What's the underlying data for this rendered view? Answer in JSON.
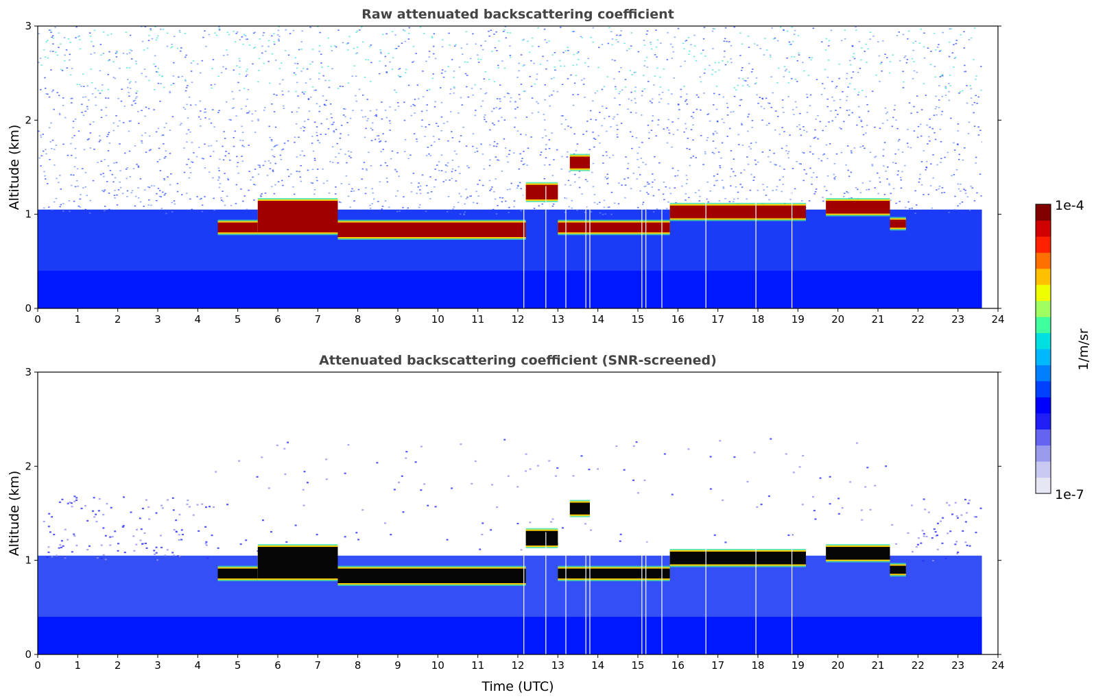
{
  "chart_data": [
    {
      "type": "heatmap",
      "title": "Raw attenuated backscattering coefficient",
      "xlabel": "",
      "ylabel": "Altitude (km)",
      "xlim": [
        0,
        24
      ],
      "ylim": [
        0,
        3
      ],
      "x_ticks": [
        0,
        1,
        2,
        3,
        4,
        5,
        6,
        7,
        8,
        9,
        10,
        11,
        12,
        13,
        14,
        15,
        16,
        17,
        18,
        19,
        20,
        21,
        22,
        23,
        24
      ],
      "y_ticks": [
        0,
        1,
        2,
        3
      ],
      "data_end_time": 23.6,
      "cloud_layer": [
        {
          "t_start": 4.5,
          "t_end": 5.5,
          "base_km": 0.8,
          "top_km": 0.92
        },
        {
          "t_start": 5.5,
          "t_end": 7.5,
          "base_km": 0.8,
          "top_km": 1.15
        },
        {
          "t_start": 7.5,
          "t_end": 12.2,
          "base_km": 0.75,
          "top_km": 0.92
        },
        {
          "t_start": 12.2,
          "t_end": 13.0,
          "base_km": 1.15,
          "top_km": 1.32
        },
        {
          "t_start": 13.3,
          "t_end": 13.8,
          "base_km": 1.48,
          "top_km": 1.62
        },
        {
          "t_start": 13.0,
          "t_end": 15.8,
          "base_km": 0.8,
          "top_km": 0.92
        },
        {
          "t_start": 15.8,
          "t_end": 19.2,
          "base_km": 0.95,
          "top_km": 1.1
        },
        {
          "t_start": 19.7,
          "t_end": 21.3,
          "base_km": 1.0,
          "top_km": 1.15
        },
        {
          "t_start": 21.3,
          "t_end": 21.7,
          "base_km": 0.85,
          "top_km": 0.95
        }
      ],
      "gaps": [
        12.15,
        12.7,
        13.2,
        13.7,
        13.8,
        15.1,
        15.2,
        15.6,
        16.7,
        17.95,
        18.85
      ]
    },
    {
      "type": "heatmap",
      "title": "Attenuated backscattering coefficient (SNR-screened)",
      "xlabel": "Time (UTC)",
      "ylabel": "Altitude (km)",
      "xlim": [
        0,
        24
      ],
      "ylim": [
        0,
        3
      ],
      "x_ticks": [
        0,
        1,
        2,
        3,
        4,
        5,
        6,
        7,
        8,
        9,
        10,
        11,
        12,
        13,
        14,
        15,
        16,
        17,
        18,
        19,
        20,
        21,
        22,
        23,
        24
      ],
      "y_ticks": [
        0,
        1,
        2,
        3
      ],
      "data_end_time": 23.6,
      "screened": true
    }
  ],
  "colorbar": {
    "label": "1/m/sr",
    "max_label": "1e-4",
    "min_label": "1e-7",
    "colors": [
      "#e6e6f5",
      "#c8c8f0",
      "#9b9bee",
      "#6464f0",
      "#1e1ef5",
      "#0000ff",
      "#0040ff",
      "#0080ff",
      "#00b8ff",
      "#00e0e0",
      "#40ff9f",
      "#a0ff60",
      "#f0ff00",
      "#ffc000",
      "#ff7000",
      "#ff2000",
      "#d00000",
      "#800000"
    ]
  }
}
